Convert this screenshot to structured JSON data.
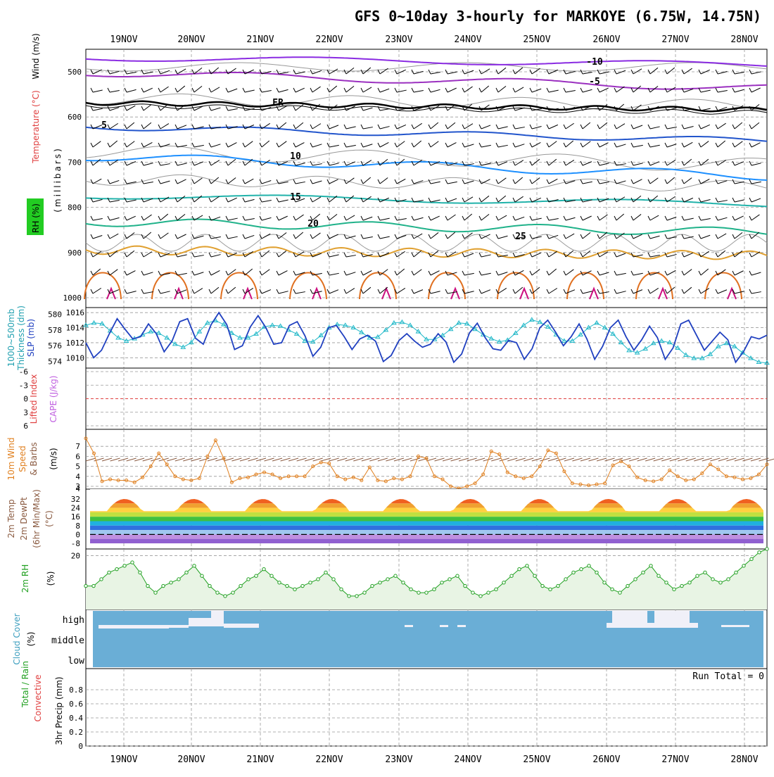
{
  "title": "GFS 0~10day 3-hourly for MARKOYE (6.75W, 14.75N)",
  "dates": [
    "19NOV",
    "20NOV",
    "21NOV",
    "22NOV",
    "23NOV",
    "24NOV",
    "25NOV",
    "26NOV",
    "27NOV",
    "28NOV"
  ],
  "panels": {
    "upper": {
      "labels": [
        "Wind (m/s)",
        "Temperature (°C)",
        "RH (%)",
        "(millibars)"
      ],
      "pressure_ticks": [
        "500",
        "600",
        "700",
        "800",
        "900",
        "1000"
      ],
      "contour_labels": [
        "-10",
        "-5",
        "FR",
        "5",
        "10",
        "15",
        "20",
        "25"
      ],
      "colors": {
        "m10": "#8a2be2",
        "m5": "#9b30c0",
        "fr": "#000000",
        "p5": "#2255cc",
        "p10": "#1e90ff",
        "p15": "#20b2aa",
        "p20": "#20b28a",
        "p25": "#e0a030",
        "p30": "#e07020",
        "rh": "#999999"
      }
    },
    "slp": {
      "labels": [
        "1000~500mb",
        "Thickness (dm)",
        "SLP (mb)"
      ],
      "thick_ticks": [
        "580",
        "578",
        "576",
        "574"
      ],
      "slp_ticks": [
        "1016",
        "1014",
        "1012",
        "1010"
      ]
    },
    "lifted": {
      "labels": [
        "Lifted Index",
        "CAPE (J/kg)"
      ],
      "ticks": [
        "-6",
        "-3",
        "0",
        "3",
        "6"
      ]
    },
    "wind10": {
      "labels": [
        "10m Wind",
        "Speed",
        "& Barbs",
        "(m/s)"
      ],
      "ticks": [
        "7",
        "6",
        "5",
        "4",
        "3"
      ]
    },
    "temp2m": {
      "labels": [
        "2m Temp",
        "2m DewPt",
        "(6hr Min/Max)",
        "(°C)"
      ],
      "ticks": [
        "32",
        "24",
        "16",
        "8",
        "0",
        "-8"
      ]
    },
    "rh2m": {
      "labels": [
        "2m RH",
        "(%)"
      ],
      "ticks": [
        "20"
      ]
    },
    "cloud": {
      "labels": [
        "Cloud Cover",
        "(%)"
      ],
      "levels": [
        "high",
        "middle",
        "low"
      ]
    },
    "precip": {
      "labels": [
        "Total / Rain",
        "Convective",
        "3hr Precip (mm)"
      ],
      "ticks": [
        "0.8",
        "0.6",
        "0.4",
        "0.2",
        "0"
      ],
      "run_total": "Run Total = 0"
    }
  },
  "chart_data": [
    {
      "type": "line",
      "name_key": "slp",
      "series": [
        {
          "name": "1000~500mb Thickness (dm)",
          "axis": "left",
          "ylim": [
            573.5,
            580.5
          ],
          "values": [
            578.6,
            578.9,
            578.8,
            577.9,
            577.0,
            576.6,
            576.9,
            577.4,
            577.8,
            577.6,
            577.0,
            576.2,
            575.8,
            576.4,
            577.8,
            578.9,
            579.2,
            578.7,
            577.6,
            577.0,
            577.0,
            577.5,
            578.4,
            578.6,
            578.5,
            578.0,
            577.5,
            576.6,
            576.5,
            577.3,
            578.3,
            578.7,
            578.6,
            578.3,
            577.7,
            577.0,
            577.1,
            578.0,
            578.9,
            579.0,
            578.6,
            577.8,
            576.8,
            576.8,
            577.3,
            578.1,
            578.9,
            578.8,
            578.1,
            577.4,
            576.9,
            576.5,
            576.7,
            577.6,
            578.6,
            579.3,
            579.0,
            578.4,
            577.4,
            576.6,
            576.6,
            577.4,
            578.3,
            578.9,
            578.3,
            577.5,
            576.4,
            575.4,
            575.1,
            575.6,
            576.3,
            576.6,
            576.4,
            575.7,
            574.8,
            574.4,
            574.4,
            574.9,
            575.9,
            576.3,
            575.9,
            575.1,
            574.4,
            573.9,
            573.8
          ]
        },
        {
          "name": "SLP (mb)",
          "axis": "right",
          "ylim": [
            1009,
            1016.3
          ],
          "values": [
            1012.0,
            1010.0,
            1011.0,
            1013.2,
            1015.2,
            1013.8,
            1012.5,
            1012.8,
            1014.5,
            1013.2,
            1010.8,
            1012.2,
            1014.8,
            1015.2,
            1012.6,
            1011.8,
            1014.4,
            1016.0,
            1014.4,
            1011.1,
            1011.6,
            1014.1,
            1015.6,
            1014.0,
            1011.8,
            1012.0,
            1014.3,
            1014.8,
            1012.9,
            1010.2,
            1011.4,
            1014.0,
            1014.3,
            1012.8,
            1011.1,
            1012.5,
            1013.0,
            1012.2,
            1009.5,
            1010.3,
            1012.3,
            1013.2,
            1012.2,
            1011.4,
            1011.8,
            1013.2,
            1012.1,
            1009.4,
            1010.5,
            1013.3,
            1014.6,
            1012.7,
            1011.2,
            1011.0,
            1012.3,
            1012.0,
            1009.8,
            1011.2,
            1014.0,
            1015.0,
            1013.4,
            1011.6,
            1012.8,
            1014.5,
            1012.5,
            1009.8,
            1011.5,
            1014.0,
            1015.0,
            1012.8,
            1011.0,
            1012.4,
            1014.2,
            1012.7,
            1009.8,
            1011.3,
            1014.5,
            1015.0,
            1013.0,
            1011.0,
            1012.2,
            1013.4,
            1012.4,
            1009.4,
            1010.8,
            1012.8,
            1012.5,
            1013.0
          ]
        }
      ]
    },
    {
      "type": "line",
      "name_key": "wind10",
      "ylim": [
        3,
        8
      ],
      "series": [
        {
          "name": "Speed",
          "values": [
            7.8,
            6.3,
            3.5,
            3.7,
            3.6,
            3.6,
            3.4,
            3.9,
            5.0,
            6.3,
            5.2,
            4.0,
            3.7,
            3.6,
            3.8,
            6.0,
            7.6,
            5.8,
            3.4,
            3.8,
            3.9,
            4.2,
            4.4,
            4.2,
            3.8,
            4.0,
            4.0,
            4.0,
            5.0,
            5.4,
            5.3,
            4.0,
            3.7,
            3.9,
            3.6,
            4.9,
            3.6,
            3.5,
            3.8,
            3.7,
            4.0,
            6.0,
            5.8,
            4.0,
            3.7,
            3.0,
            2.8,
            3.0,
            3.3,
            4.2,
            6.5,
            6.2,
            4.4,
            4.0,
            3.8,
            4.0,
            5.0,
            6.6,
            6.3,
            4.5,
            3.3,
            3.2,
            3.1,
            3.2,
            3.3,
            5.1,
            5.5,
            5.0,
            3.9,
            3.6,
            3.5,
            3.7,
            4.6,
            4.0,
            3.6,
            3.7,
            4.3,
            5.2,
            4.7,
            4.0,
            3.9,
            3.7,
            3.8,
            4.2,
            5.2
          ]
        }
      ]
    },
    {
      "type": "line",
      "name_key": "rh2m",
      "ylim": [
        4,
        22
      ],
      "series": [
        {
          "name": "2m RH",
          "values": [
            11,
            11,
            13,
            15,
            16,
            17,
            18,
            15,
            11,
            9,
            11,
            12,
            13,
            15,
            17,
            14,
            11,
            9,
            8,
            9,
            11,
            13,
            14,
            16,
            14,
            12,
            11,
            10,
            11,
            12,
            13,
            15,
            13,
            10,
            8,
            8,
            9,
            11,
            12,
            13,
            14,
            12,
            10,
            9,
            9,
            10,
            12,
            13,
            14,
            11,
            9,
            8,
            9,
            10,
            12,
            14,
            16,
            17,
            14,
            11,
            10,
            11,
            13,
            15,
            16,
            17,
            15,
            12,
            10,
            9,
            11,
            13,
            15,
            17,
            14,
            12,
            10,
            11,
            12,
            14,
            15,
            13,
            12,
            13,
            15,
            17,
            19,
            21,
            22
          ]
        }
      ]
    }
  ]
}
